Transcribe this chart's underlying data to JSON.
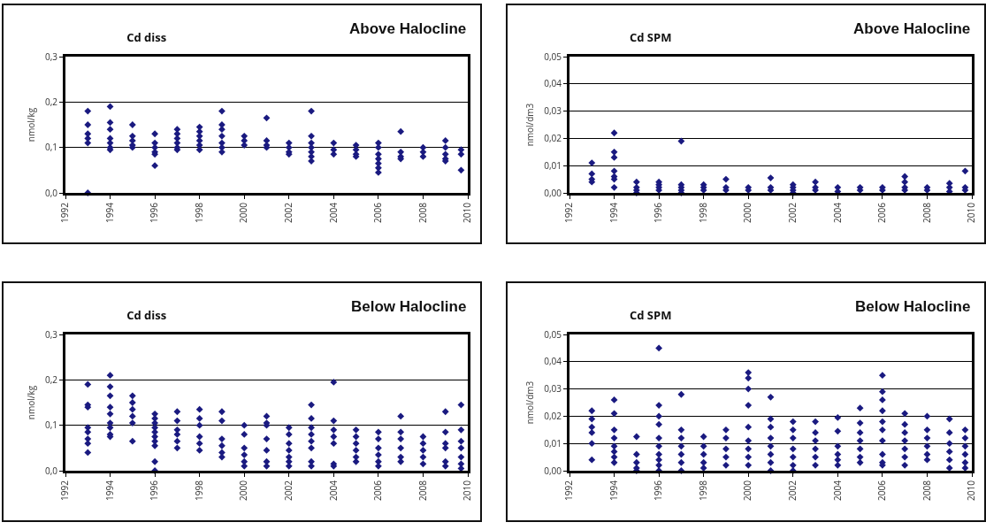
{
  "chart_data": [
    {
      "type": "scatter",
      "title": "Cd diss",
      "subtitle": "Above Halocline",
      "ylabel": "nmol/kg",
      "xlim": [
        1992,
        2010
      ],
      "xticks": [
        1992,
        1994,
        1996,
        1998,
        2000,
        2002,
        2004,
        2006,
        2008,
        2010
      ],
      "ylim": [
        0,
        0.3
      ],
      "yticks": [
        {
          "value": 0,
          "label": "0,0"
        },
        {
          "value": 0.1,
          "label": "0,1"
        },
        {
          "value": 0.2,
          "label": "0,2"
        },
        {
          "value": 0.3,
          "label": "0,3"
        }
      ],
      "grid": "y",
      "marker": "diamond",
      "series": [
        {
          "color": "#1a1a80",
          "x": [
            1993,
            1993,
            1993,
            1993,
            1993,
            1993,
            1994,
            1994,
            1994,
            1994,
            1994,
            1994,
            1994,
            1995,
            1995,
            1995,
            1995,
            1995,
            1996,
            1996,
            1996,
            1996,
            1996,
            1996,
            1997,
            1997,
            1997,
            1997,
            1997,
            1997,
            1998,
            1998,
            1998,
            1998,
            1998,
            1998,
            1999,
            1999,
            1999,
            1999,
            1999,
            1999,
            1999,
            2000,
            2000,
            2000,
            2001,
            2001,
            2001,
            2001,
            2002,
            2002,
            2002,
            2002,
            2003,
            2003,
            2003,
            2003,
            2003,
            2003,
            2003,
            2004,
            2004,
            2004,
            2005,
            2005,
            2005,
            2005,
            2006,
            2006,
            2006,
            2006,
            2006,
            2006,
            2006,
            2007,
            2007,
            2007,
            2007,
            2008,
            2008,
            2008,
            2009,
            2009,
            2009,
            2009,
            2009,
            2009.7,
            2009.7,
            2009.7
          ],
          "values": [
            0.18,
            0.15,
            0.13,
            0.12,
            0.11,
            0.0,
            0.19,
            0.155,
            0.14,
            0.12,
            0.11,
            0.1,
            0.095,
            0.15,
            0.125,
            0.115,
            0.105,
            0.1,
            0.13,
            0.11,
            0.1,
            0.09,
            0.085,
            0.06,
            0.14,
            0.13,
            0.12,
            0.11,
            0.1,
            0.095,
            0.145,
            0.135,
            0.125,
            0.115,
            0.105,
            0.095,
            0.18,
            0.15,
            0.14,
            0.125,
            0.11,
            0.1,
            0.09,
            0.125,
            0.115,
            0.105,
            0.165,
            0.115,
            0.105,
            0.1,
            0.11,
            0.1,
            0.09,
            0.085,
            0.18,
            0.125,
            0.11,
            0.1,
            0.09,
            0.08,
            0.07,
            0.11,
            0.095,
            0.085,
            0.105,
            0.095,
            0.085,
            0.08,
            0.11,
            0.1,
            0.085,
            0.075,
            0.065,
            0.055,
            0.045,
            0.135,
            0.09,
            0.08,
            0.075,
            0.1,
            0.09,
            0.08,
            0.115,
            0.1,
            0.085,
            0.075,
            0.07,
            0.095,
            0.085,
            0.05
          ]
        }
      ]
    },
    {
      "type": "scatter",
      "title": "Cd SPM",
      "subtitle": "Above Halocline",
      "ylabel": "nmol/dm3",
      "xlim": [
        1992,
        2010
      ],
      "xticks": [
        1992,
        1994,
        1996,
        1998,
        2000,
        2002,
        2004,
        2006,
        2008,
        2010
      ],
      "ylim": [
        0,
        0.05
      ],
      "yticks": [
        {
          "value": 0,
          "label": "0,00"
        },
        {
          "value": 0.01,
          "label": "0,01"
        },
        {
          "value": 0.02,
          "label": "0,02"
        },
        {
          "value": 0.03,
          "label": "0,03"
        },
        {
          "value": 0.04,
          "label": "0,04"
        },
        {
          "value": 0.05,
          "label": "0,05"
        }
      ],
      "grid": "y",
      "marker": "diamond",
      "series": [
        {
          "color": "#1a1a80",
          "x": [
            1993,
            1993,
            1993,
            1993,
            1994,
            1994,
            1994,
            1994,
            1994,
            1994,
            1994,
            1995,
            1995,
            1995,
            1995,
            1996,
            1996,
            1996,
            1996,
            1997,
            1997,
            1997,
            1997,
            1997,
            1998,
            1998,
            1998,
            1999,
            1999,
            1999,
            2000,
            2000,
            2001,
            2001,
            2001,
            2002,
            2002,
            2002,
            2002,
            2003,
            2003,
            2003,
            2004,
            2004,
            2005,
            2005,
            2006,
            2006,
            2007,
            2007,
            2007,
            2007,
            2008,
            2008,
            2009,
            2009,
            2009,
            2009.7,
            2009.7,
            2009.7
          ],
          "values": [
            0.011,
            0.007,
            0.005,
            0.004,
            0.022,
            0.015,
            0.013,
            0.008,
            0.006,
            0.005,
            0.002,
            0.004,
            0.002,
            0.001,
            0,
            0.004,
            0.003,
            0.002,
            0.001,
            0.019,
            0.003,
            0.002,
            0.001,
            0,
            0.003,
            0.002,
            0.001,
            0.005,
            0.002,
            0.001,
            0.002,
            0.001,
            0.0055,
            0.002,
            0.001,
            0.003,
            0.002,
            0.001,
            0,
            0.004,
            0.002,
            0.001,
            0.002,
            0.0005,
            0.002,
            0.001,
            0.002,
            0.001,
            0.006,
            0.004,
            0.002,
            0.001,
            0.002,
            0.001,
            0.0035,
            0.002,
            0.0005,
            0.008,
            0.002,
            0.001
          ]
        }
      ]
    },
    {
      "type": "scatter",
      "title": "Cd diss",
      "subtitle": "Below Halocline",
      "ylabel": "nmol/kg",
      "xlim": [
        1992,
        2010
      ],
      "xticks": [
        1992,
        1994,
        1996,
        1998,
        2000,
        2002,
        2004,
        2006,
        2008,
        2010
      ],
      "ylim": [
        0,
        0.3
      ],
      "yticks": [
        {
          "value": 0,
          "label": "0,0"
        },
        {
          "value": 0.1,
          "label": "0,1"
        },
        {
          "value": 0.2,
          "label": "0,2"
        },
        {
          "value": 0.3,
          "label": "0,3"
        }
      ],
      "grid": "y",
      "marker": "diamond",
      "series": [
        {
          "color": "#1a1a80",
          "x": [
            1993,
            1993,
            1993,
            1993,
            1993,
            1993,
            1993,
            1993,
            1994,
            1994,
            1994,
            1994,
            1994,
            1994,
            1994,
            1994,
            1994,
            1995,
            1995,
            1995,
            1995,
            1995,
            1995,
            1996,
            1996,
            1996,
            1996,
            1996,
            1996,
            1996,
            1996,
            1996,
            1996,
            1997,
            1997,
            1997,
            1997,
            1997,
            1997,
            1998,
            1998,
            1998,
            1998,
            1998,
            1998,
            1999,
            1999,
            1999,
            1999,
            1999,
            1999,
            2000,
            2000,
            2000,
            2000,
            2000,
            2000,
            2001,
            2001,
            2001,
            2001,
            2001,
            2001,
            2001,
            2002,
            2002,
            2002,
            2002,
            2002,
            2002,
            2002,
            2003,
            2003,
            2003,
            2003,
            2003,
            2003,
            2003,
            2003,
            2004,
            2004,
            2004,
            2004,
            2004,
            2004,
            2004,
            2005,
            2005,
            2005,
            2005,
            2005,
            2005,
            2006,
            2006,
            2006,
            2006,
            2006,
            2006,
            2007,
            2007,
            2007,
            2007,
            2007,
            2007,
            2008,
            2008,
            2008,
            2008,
            2008,
            2009,
            2009,
            2009,
            2009,
            2009,
            2009,
            2009.7,
            2009.7,
            2009.7,
            2009.7,
            2009.7,
            2009.7,
            2009.7
          ],
          "values": [
            0.19,
            0.145,
            0.14,
            0.095,
            0.085,
            0.07,
            0.06,
            0.04,
            0.21,
            0.185,
            0.165,
            0.14,
            0.125,
            0.105,
            0.095,
            0.08,
            0.075,
            0.165,
            0.15,
            0.135,
            0.12,
            0.105,
            0.065,
            0.125,
            0.115,
            0.105,
            0.095,
            0.085,
            0.075,
            0.065,
            0.055,
            0.02,
            0,
            0.13,
            0.11,
            0.09,
            0.08,
            0.065,
            0.05,
            0.135,
            0.115,
            0.1,
            0.075,
            0.06,
            0.045,
            0.13,
            0.11,
            0.07,
            0.055,
            0.04,
            0.03,
            0.1,
            0.08,
            0.05,
            0.035,
            0.02,
            0.01,
            0.12,
            0.105,
            0.1,
            0.07,
            0.045,
            0.02,
            0.01,
            0.095,
            0.08,
            0.06,
            0.045,
            0.03,
            0.02,
            0.01,
            0.145,
            0.115,
            0.095,
            0.08,
            0.065,
            0.05,
            0.02,
            0.01,
            0.195,
            0.11,
            0.09,
            0.075,
            0.06,
            0.015,
            0.01,
            0.09,
            0.075,
            0.06,
            0.045,
            0.03,
            0.02,
            0.085,
            0.07,
            0.05,
            0.035,
            0.02,
            0.01,
            0.12,
            0.085,
            0.07,
            0.05,
            0.03,
            0.02,
            0.075,
            0.06,
            0.045,
            0.03,
            0.015,
            0.13,
            0.085,
            0.06,
            0.05,
            0.02,
            0.01,
            0.145,
            0.09,
            0.065,
            0.05,
            0.03,
            0.015,
            0.005
          ]
        }
      ]
    },
    {
      "type": "scatter",
      "title": "Cd SPM",
      "subtitle": "Below Halocline",
      "ylabel": "nmol/dm3",
      "xlim": [
        1992,
        2010
      ],
      "xticks": [
        1992,
        1994,
        1996,
        1998,
        2000,
        2002,
        2004,
        2006,
        2008,
        2010
      ],
      "ylim": [
        0,
        0.05
      ],
      "yticks": [
        {
          "value": 0,
          "label": "0,00"
        },
        {
          "value": 0.01,
          "label": "0,01"
        },
        {
          "value": 0.02,
          "label": "0,02"
        },
        {
          "value": 0.03,
          "label": "0,03"
        },
        {
          "value": 0.04,
          "label": "0,04"
        },
        {
          "value": 0.05,
          "label": "0,05"
        }
      ],
      "grid": "y",
      "marker": "diamond",
      "series": [
        {
          "color": "#1a1a80",
          "x": [
            1993,
            1993,
            1993,
            1993,
            1993,
            1993,
            1994,
            1994,
            1994,
            1994,
            1994,
            1994,
            1994,
            1994,
            1995,
            1995,
            1995,
            1995,
            1995,
            1996,
            1996,
            1996,
            1996,
            1996,
            1996,
            1996,
            1996,
            1996,
            1996,
            1997,
            1997,
            1997,
            1997,
            1997,
            1997,
            1997,
            1998,
            1998,
            1998,
            1998,
            1998,
            1999,
            1999,
            1999,
            1999,
            1999,
            2000,
            2000,
            2000,
            2000,
            2000,
            2000,
            2000,
            2000,
            2000,
            2001,
            2001,
            2001,
            2001,
            2001,
            2001,
            2001,
            2001,
            2002,
            2002,
            2002,
            2002,
            2002,
            2002,
            2002,
            2003,
            2003,
            2003,
            2003,
            2003,
            2003,
            2004,
            2004,
            2004,
            2004,
            2004,
            2004,
            2005,
            2005,
            2005,
            2005,
            2005,
            2005,
            2005,
            2006,
            2006,
            2006,
            2006,
            2006,
            2006,
            2006,
            2006,
            2006,
            2006,
            2007,
            2007,
            2007,
            2007,
            2007,
            2007,
            2007,
            2008,
            2008,
            2008,
            2008,
            2008,
            2008,
            2009,
            2009,
            2009,
            2009,
            2009,
            2009,
            2009.7,
            2009.7,
            2009.7,
            2009.7,
            2009.7,
            2009.7
          ],
          "values": [
            0.022,
            0.019,
            0.016,
            0.014,
            0.01,
            0.004,
            0.026,
            0.021,
            0.015,
            0.012,
            0.009,
            0.007,
            0.005,
            0.003,
            0.0125,
            0.006,
            0.003,
            0.001,
            0,
            0.045,
            0.024,
            0.02,
            0.017,
            0.012,
            0.009,
            0.006,
            0.004,
            0.002,
            0,
            0.028,
            0.015,
            0.012,
            0.009,
            0.006,
            0.003,
            0,
            0.0125,
            0.009,
            0.006,
            0.003,
            0.001,
            0.015,
            0.012,
            0.008,
            0.005,
            0.002,
            0.036,
            0.034,
            0.03,
            0.024,
            0.016,
            0.011,
            0.008,
            0.005,
            0.002,
            0.027,
            0.019,
            0.016,
            0.012,
            0.009,
            0.006,
            0.003,
            0,
            0.018,
            0.015,
            0.012,
            0.008,
            0.005,
            0.002,
            0,
            0.018,
            0.014,
            0.011,
            0.008,
            0.005,
            0.002,
            0.0195,
            0.0145,
            0.009,
            0.006,
            0.004,
            0.002,
            0.023,
            0.0175,
            0.014,
            0.011,
            0.008,
            0.005,
            0.003,
            0.035,
            0.029,
            0.026,
            0.022,
            0.018,
            0.015,
            0.011,
            0.006,
            0.003,
            0.002,
            0.021,
            0.017,
            0.014,
            0.011,
            0.008,
            0.005,
            0.002,
            0.02,
            0.015,
            0.012,
            0.009,
            0.006,
            0.004,
            0.019,
            0.014,
            0.01,
            0.007,
            0.004,
            0.001,
            0.015,
            0.012,
            0.009,
            0.006,
            0.003,
            0.001
          ]
        }
      ]
    }
  ]
}
